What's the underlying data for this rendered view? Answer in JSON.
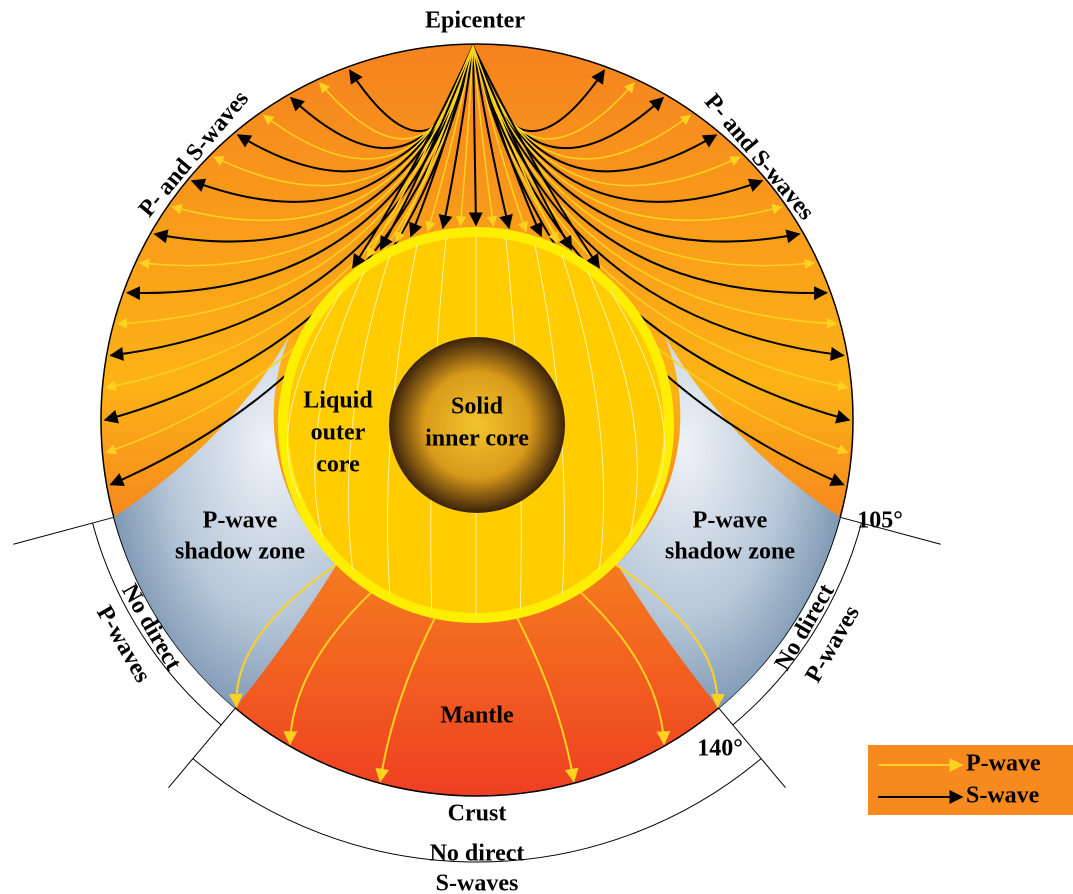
{
  "labels": {
    "epicenter": "Epicenter",
    "left_waves": "P- and S-waves",
    "right_waves": "P- and S-waves",
    "outer_core": [
      "Liquid",
      "outer",
      "core"
    ],
    "inner_core": [
      "Solid",
      "inner core"
    ],
    "left_shadow": [
      "P-wave",
      "shadow zone"
    ],
    "right_shadow": [
      "P-wave",
      "shadow zone"
    ],
    "angle_105": "105°",
    "angle_140": "140°",
    "left_no_p": [
      "No direct",
      "P-waves"
    ],
    "right_no_p": [
      "No direct",
      "P-waves"
    ],
    "mantle": "Mantle",
    "crust": "Crust",
    "no_s": [
      "No direct",
      "S-waves"
    ]
  },
  "legend": [
    {
      "label": "P-wave",
      "color": "#ffd21f"
    },
    {
      "label": "S-wave",
      "color": "#000000"
    }
  ]
}
